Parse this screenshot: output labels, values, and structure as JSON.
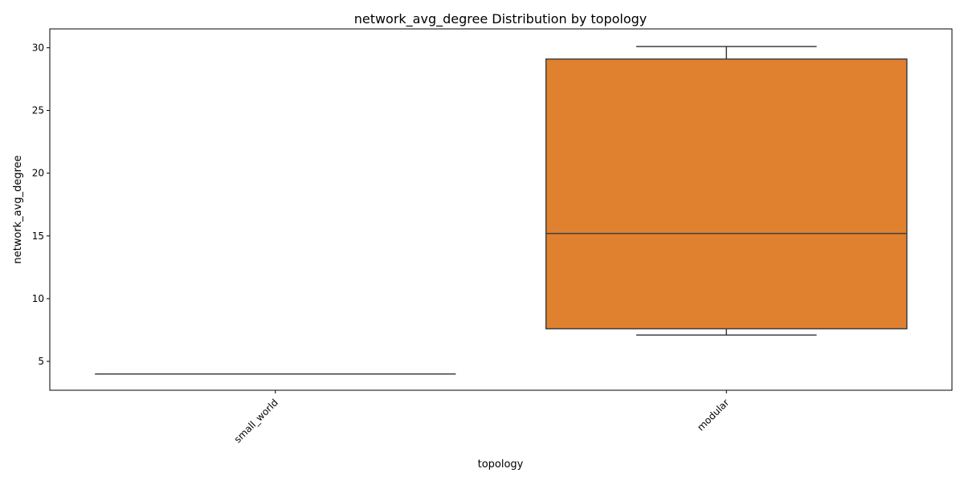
{
  "chart_data": {
    "type": "box",
    "title": "network_avg_degree Distribution by topology",
    "xlabel": "topology",
    "ylabel": "network_avg_degree",
    "categories": [
      "small_world",
      "modular"
    ],
    "yticks": [
      5,
      10,
      15,
      20,
      25,
      30
    ],
    "ylim": [
      2.7,
      31.5
    ],
    "grid": false,
    "legend": "none",
    "boxes": [
      {
        "category": "small_world",
        "whisker_low": 4.0,
        "q1": 4.0,
        "median": 4.0,
        "q3": 4.0,
        "whisker_high": 4.0,
        "color": "#1f77b4"
      },
      {
        "category": "modular",
        "whisker_low": 7.1,
        "q1": 7.6,
        "median": 15.2,
        "q3": 29.1,
        "whisker_high": 30.1,
        "color": "#e0812f"
      }
    ],
    "line_color": "#3f3f3f"
  }
}
